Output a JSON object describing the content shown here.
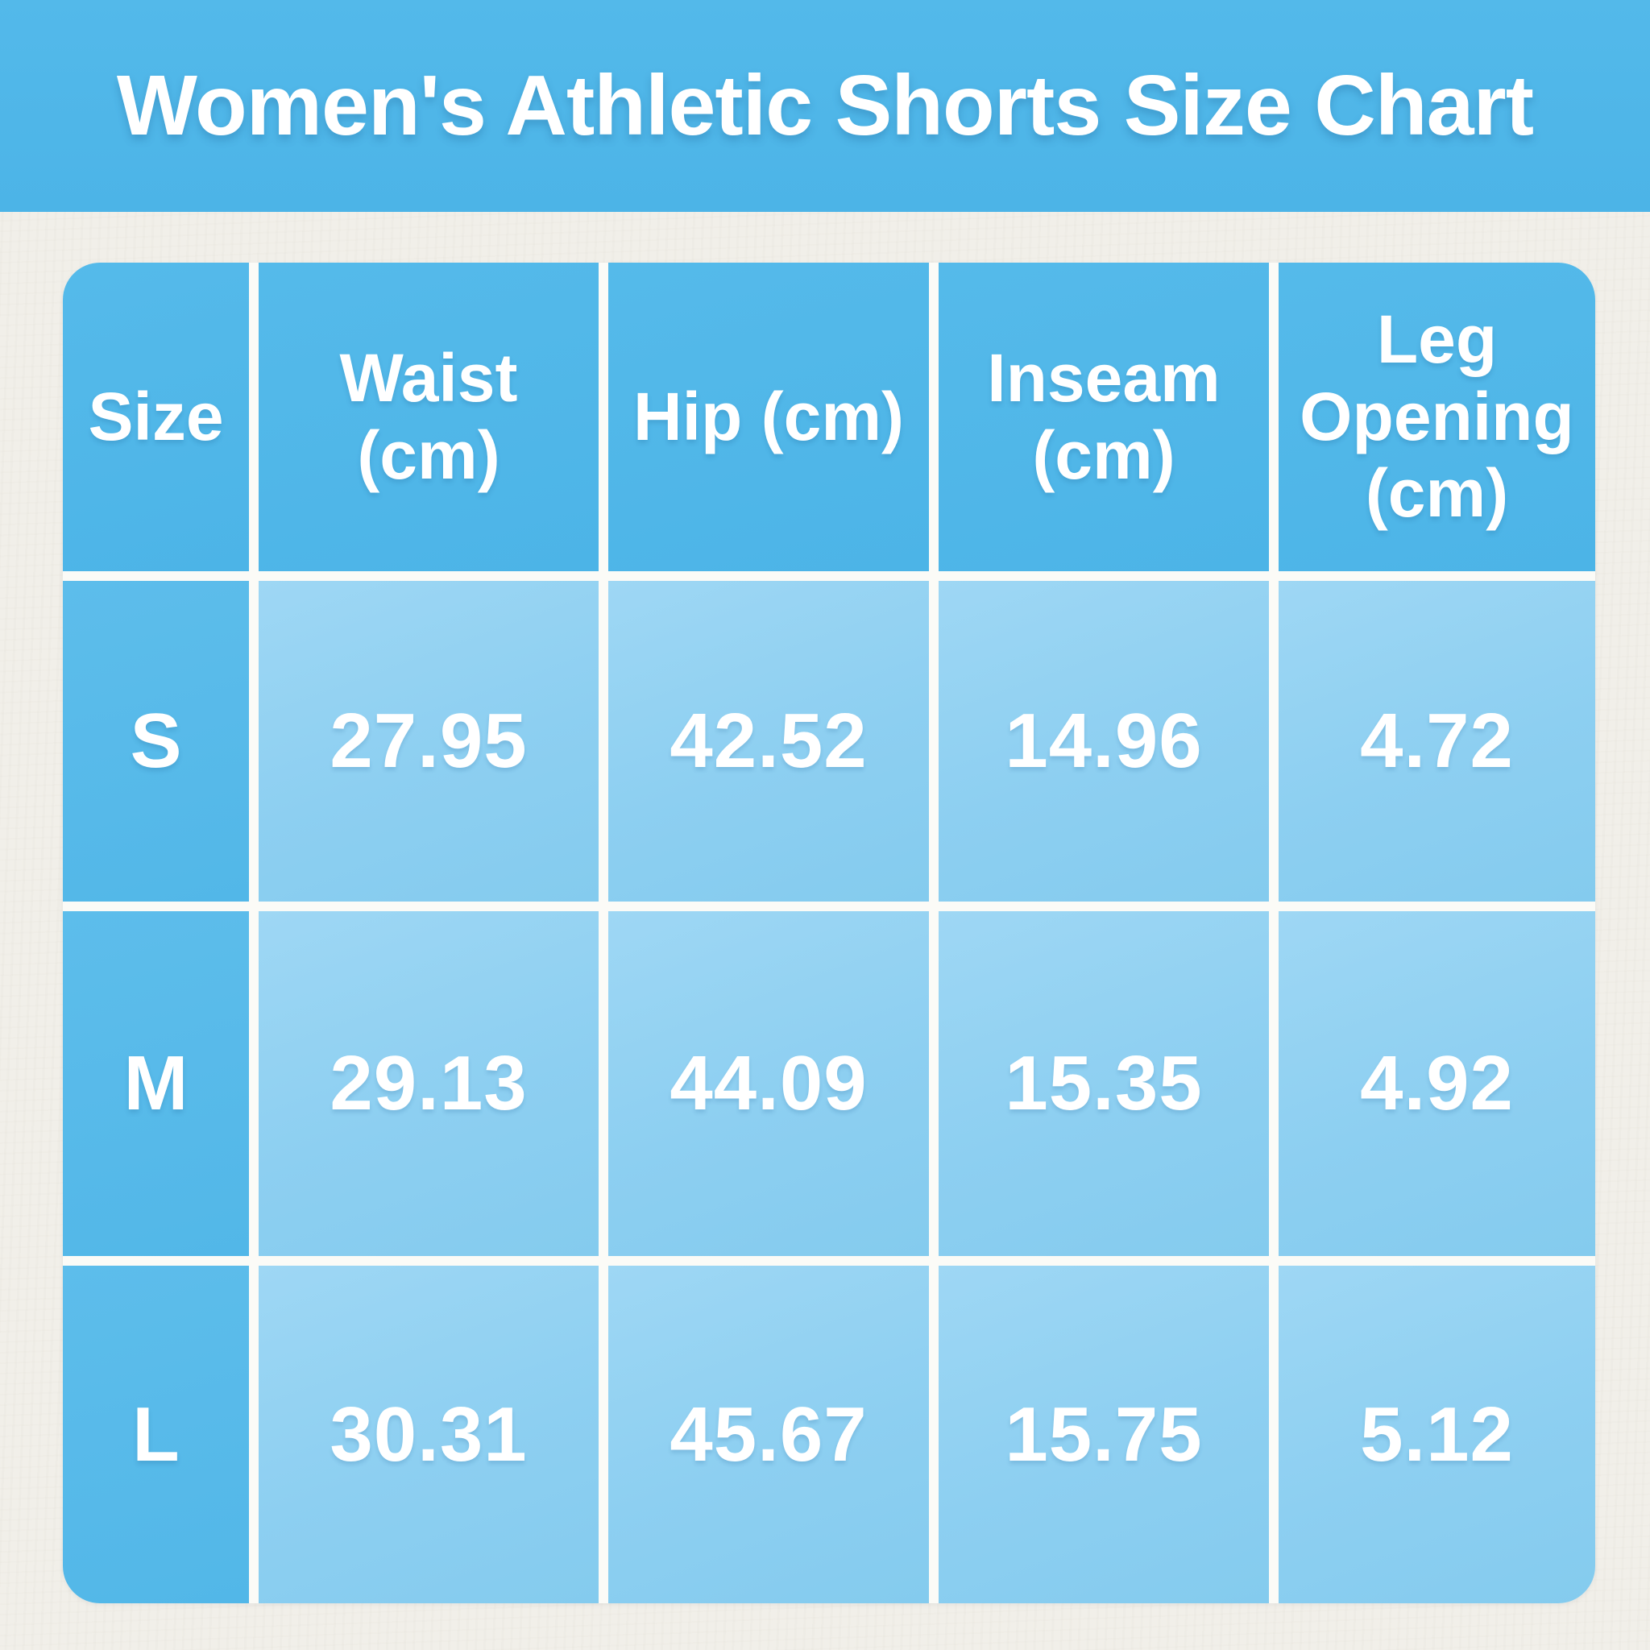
{
  "title": "Women's Athletic Shorts Size Chart",
  "colors": {
    "banner_blue": "#4FB7E9",
    "header_blue": "#4FB7E9",
    "row_label_blue": "#57BAE9",
    "data_cell_blue": "#8FD0F1",
    "gridline_white": "#FBFBF7",
    "background_paper": "#F1EFE9",
    "text_white": "#FFFFFF"
  },
  "table": {
    "columns": [
      "Size",
      "Waist (cm)",
      "Hip (cm)",
      "Inseam (cm)",
      "Leg Opening (cm)"
    ],
    "rows": [
      {
        "size": "S",
        "values": [
          "27.95",
          "42.52",
          "14.96",
          "4.72"
        ]
      },
      {
        "size": "M",
        "values": [
          "29.13",
          "44.09",
          "15.35",
          "4.92"
        ]
      },
      {
        "size": "L",
        "values": [
          "30.31",
          "45.67",
          "15.75",
          "5.12"
        ]
      }
    ]
  },
  "chart_data": {
    "type": "table",
    "title": "Women's Athletic Shorts Size Chart",
    "columns": [
      "Size",
      "Waist (cm)",
      "Hip (cm)",
      "Inseam (cm)",
      "Leg Opening (cm)"
    ],
    "rows": [
      [
        "S",
        27.95,
        42.52,
        14.96,
        4.72
      ],
      [
        "M",
        29.13,
        44.09,
        15.35,
        4.92
      ],
      [
        "L",
        30.31,
        45.67,
        15.75,
        5.12
      ]
    ]
  }
}
